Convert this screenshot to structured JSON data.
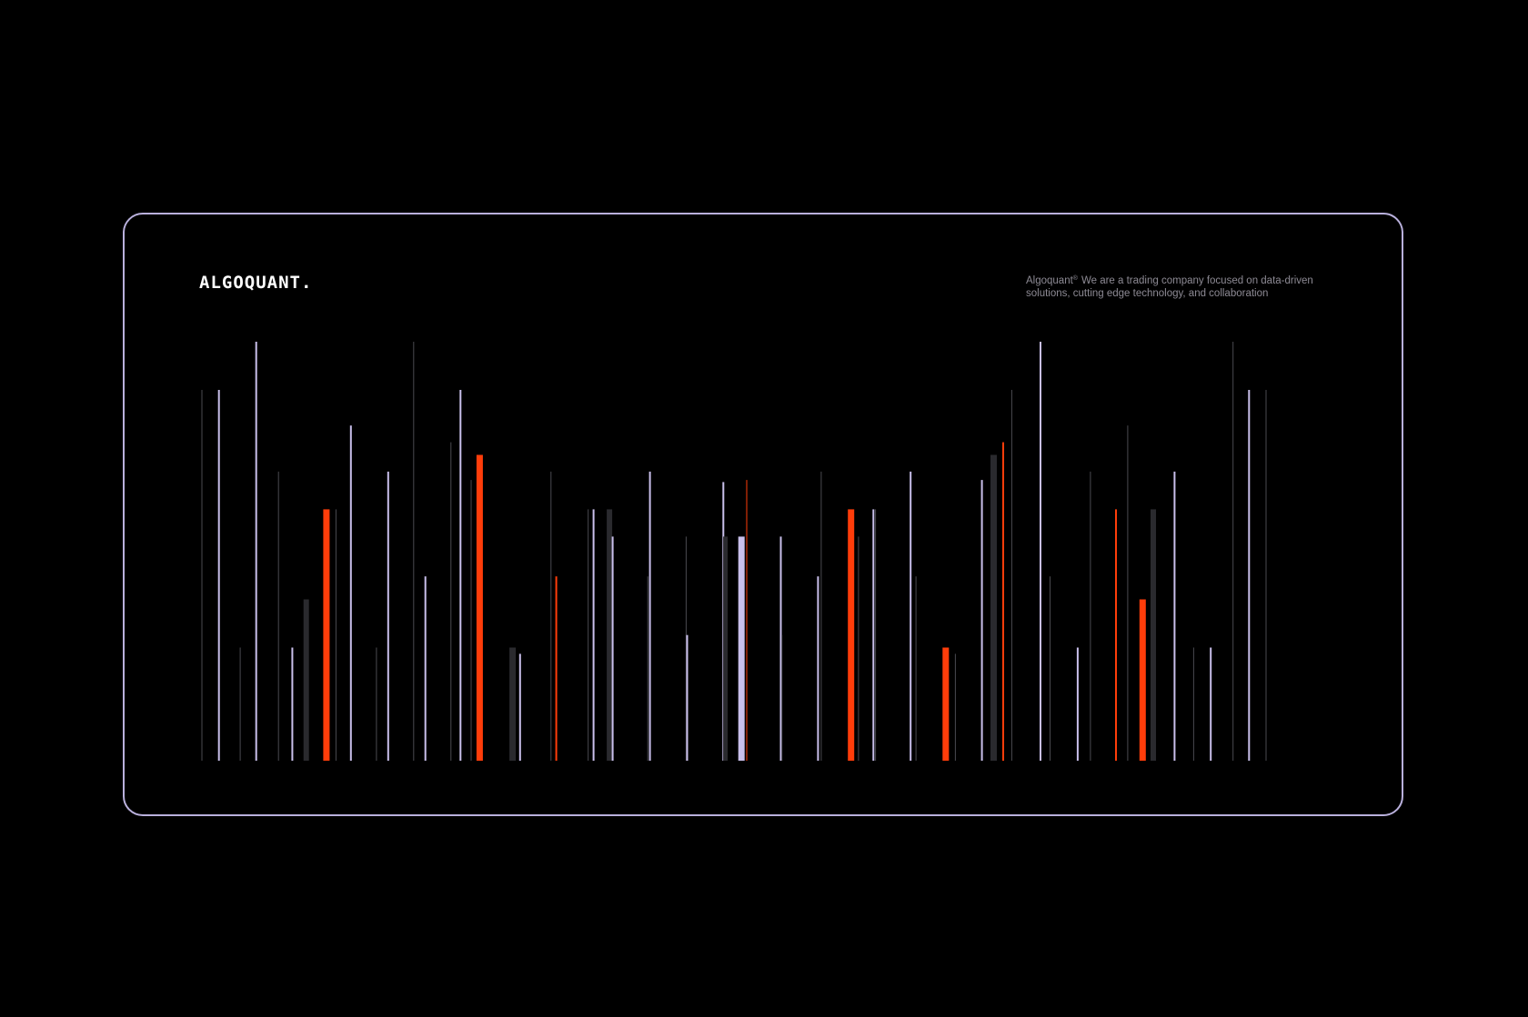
{
  "brand": {
    "logo_text": "ALGOQUANT.",
    "trademark": "®",
    "tagline_name": "Algoquant",
    "tagline": "We are a trading company focused on data-driven solutions, cutting edge technology, and collaboration"
  },
  "colors": {
    "background": "#000000",
    "border": "#b9b0dc",
    "lavender": "#c9bfeb",
    "orange": "#ff3d0a",
    "dark": "#2a2a2e",
    "faint": "#4a4a50"
  },
  "visualization": {
    "baseline_value": 0,
    "max_value": 1.0,
    "bars": [
      {
        "x": 0.0,
        "v": 0.885,
        "w": 1,
        "c": "faint"
      },
      {
        "x": 0.016,
        "v": 0.885,
        "w": 2,
        "c": "lavender"
      },
      {
        "x": 0.036,
        "v": 0.27,
        "w": 1,
        "c": "faint"
      },
      {
        "x": 0.051,
        "v": 1.0,
        "w": 2,
        "c": "lavender"
      },
      {
        "x": 0.072,
        "v": 0.69,
        "w": 1,
        "c": "faint"
      },
      {
        "x": 0.085,
        "v": 0.27,
        "w": 2,
        "c": "lavender"
      },
      {
        "x": 0.098,
        "v": 0.385,
        "w": 6,
        "c": "dark"
      },
      {
        "x": 0.117,
        "v": 0.6,
        "w": 7,
        "c": "orange"
      },
      {
        "x": 0.126,
        "v": 0.6,
        "w": 1,
        "c": "faint"
      },
      {
        "x": 0.14,
        "v": 0.8,
        "w": 2,
        "c": "lavender"
      },
      {
        "x": 0.164,
        "v": 0.27,
        "w": 1,
        "c": "faint"
      },
      {
        "x": 0.175,
        "v": 0.69,
        "w": 2,
        "c": "lavender"
      },
      {
        "x": 0.199,
        "v": 1.0,
        "w": 1,
        "c": "faint"
      },
      {
        "x": 0.21,
        "v": 0.44,
        "w": 2,
        "c": "lavender"
      },
      {
        "x": 0.234,
        "v": 0.76,
        "w": 1,
        "c": "faint"
      },
      {
        "x": 0.243,
        "v": 0.885,
        "w": 2,
        "c": "lavender"
      },
      {
        "x": 0.253,
        "v": 0.67,
        "w": 1,
        "c": "faint"
      },
      {
        "x": 0.261,
        "v": 0.73,
        "w": 7,
        "c": "orange"
      },
      {
        "x": 0.292,
        "v": 0.27,
        "w": 7,
        "c": "dark"
      },
      {
        "x": 0.299,
        "v": 0.255,
        "w": 2,
        "c": "lavender"
      },
      {
        "x": 0.328,
        "v": 0.69,
        "w": 1,
        "c": "faint"
      },
      {
        "x": 0.333,
        "v": 0.44,
        "w": 2,
        "c": "orange"
      },
      {
        "x": 0.363,
        "v": 0.6,
        "w": 1,
        "c": "faint"
      },
      {
        "x": 0.368,
        "v": 0.6,
        "w": 2,
        "c": "lavender"
      },
      {
        "x": 0.383,
        "v": 0.6,
        "w": 6,
        "c": "dark"
      },
      {
        "x": 0.386,
        "v": 0.535,
        "w": 2,
        "c": "lavender"
      },
      {
        "x": 0.419,
        "v": 0.44,
        "w": 1,
        "c": "faint"
      },
      {
        "x": 0.421,
        "v": 0.69,
        "w": 2,
        "c": "lavender"
      },
      {
        "x": 0.455,
        "v": 0.535,
        "w": 1,
        "c": "faint"
      },
      {
        "x": 0.456,
        "v": 0.3,
        "w": 2,
        "c": "lavender"
      },
      {
        "x": 0.49,
        "v": 0.665,
        "w": 2,
        "c": "lavender"
      },
      {
        "x": 0.492,
        "v": 0.535,
        "w": 5,
        "c": "dark"
      },
      {
        "x": 0.507,
        "v": 0.535,
        "w": 7,
        "c": "lavender"
      },
      {
        "x": 0.512,
        "v": 0.67,
        "w": 1,
        "c": "orange"
      },
      {
        "x": 0.544,
        "v": 0.535,
        "w": 2,
        "c": "lavender"
      },
      {
        "x": 0.545,
        "v": 0.3,
        "w": 1,
        "c": "faint"
      },
      {
        "x": 0.579,
        "v": 0.44,
        "w": 2,
        "c": "lavender"
      },
      {
        "x": 0.582,
        "v": 0.69,
        "w": 1,
        "c": "faint"
      },
      {
        "x": 0.61,
        "v": 0.6,
        "w": 7,
        "c": "orange"
      },
      {
        "x": 0.617,
        "v": 0.535,
        "w": 1,
        "c": "faint"
      },
      {
        "x": 0.631,
        "v": 0.6,
        "w": 2,
        "c": "lavender"
      },
      {
        "x": 0.633,
        "v": 0.6,
        "w": 1,
        "c": "faint"
      },
      {
        "x": 0.666,
        "v": 0.69,
        "w": 2,
        "c": "lavender"
      },
      {
        "x": 0.671,
        "v": 0.44,
        "w": 1,
        "c": "faint"
      },
      {
        "x": 0.699,
        "v": 0.27,
        "w": 7,
        "c": "orange"
      },
      {
        "x": 0.708,
        "v": 0.255,
        "w": 1,
        "c": "faint"
      },
      {
        "x": 0.733,
        "v": 0.67,
        "w": 2,
        "c": "lavender"
      },
      {
        "x": 0.744,
        "v": 0.73,
        "w": 7,
        "c": "dark"
      },
      {
        "x": 0.753,
        "v": 0.76,
        "w": 2,
        "c": "orange"
      },
      {
        "x": 0.761,
        "v": 0.885,
        "w": 1,
        "c": "faint"
      },
      {
        "x": 0.788,
        "v": 1.0,
        "w": 2,
        "c": "lavender"
      },
      {
        "x": 0.797,
        "v": 0.44,
        "w": 1,
        "c": "faint"
      },
      {
        "x": 0.823,
        "v": 0.27,
        "w": 2,
        "c": "lavender"
      },
      {
        "x": 0.835,
        "v": 0.69,
        "w": 1,
        "c": "faint"
      },
      {
        "x": 0.859,
        "v": 0.6,
        "w": 2,
        "c": "orange"
      },
      {
        "x": 0.87,
        "v": 0.8,
        "w": 1,
        "c": "faint"
      },
      {
        "x": 0.884,
        "v": 0.385,
        "w": 7,
        "c": "orange"
      },
      {
        "x": 0.894,
        "v": 0.6,
        "w": 6,
        "c": "dark"
      },
      {
        "x": 0.914,
        "v": 0.69,
        "w": 2,
        "c": "lavender"
      },
      {
        "x": 0.932,
        "v": 0.27,
        "w": 1,
        "c": "faint"
      },
      {
        "x": 0.948,
        "v": 0.27,
        "w": 2,
        "c": "lavender"
      },
      {
        "x": 0.969,
        "v": 1.0,
        "w": 1,
        "c": "faint"
      },
      {
        "x": 0.984,
        "v": 0.885,
        "w": 2,
        "c": "lavender"
      },
      {
        "x": 1.0,
        "v": 0.885,
        "w": 1,
        "c": "faint"
      }
    ]
  }
}
